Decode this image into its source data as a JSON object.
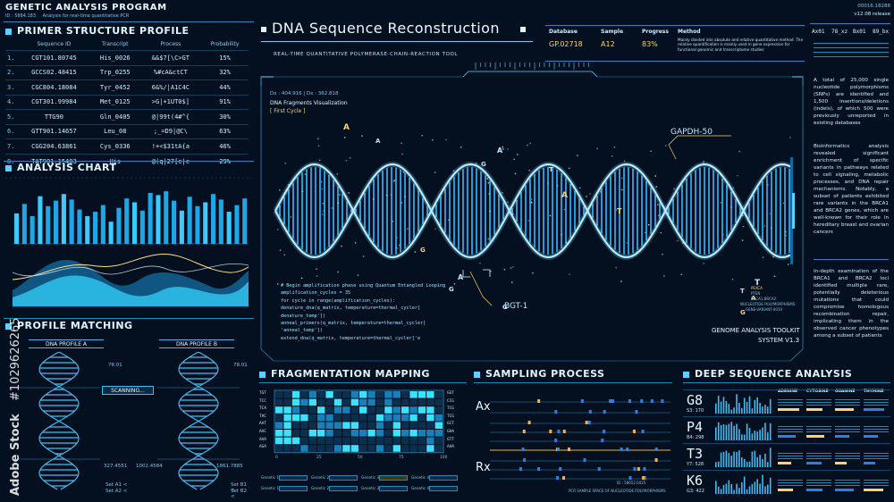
{
  "app": {
    "title": "GENETIC ANALYSIS PROGRAM",
    "subtitle": "ID : 5884.183",
    "subtitle_note": "Analysis for real-time quantitative PCR"
  },
  "primer": {
    "header": "PRIMER STRUCTURE PROFILE",
    "columns": [
      "Sequence ID",
      "Transcript",
      "Process",
      "Probability"
    ],
    "rows": [
      {
        "n": "1.",
        "id": "CGT101.80745",
        "tr": "His_0026",
        "proc": "&&$7[\\C>GT",
        "prob": "15%"
      },
      {
        "n": "2.",
        "id": "GCCS02.48415",
        "tr": "Trp_0255",
        "proc": "%#cA&ctCT",
        "prob": "32%"
      },
      {
        "n": "3.",
        "id": "CGC804.18084",
        "tr": "Tyr_0452",
        "proc": "6&%/|A1C4C",
        "prob": "44%"
      },
      {
        "n": "4.",
        "id": "CGT301.99984",
        "tr": "Met_0125",
        "proc": ">G|+1UT0$]",
        "prob": "91%"
      },
      {
        "n": "5.",
        "id": "TTG90",
        "tr": "Gln_0405",
        "proc": "@|99t(4#^{",
        "prob": "30%"
      },
      {
        "n": "6.",
        "id": "GTT901.14657",
        "tr": "Leu_08",
        "proc": ";_=D9|@C\\",
        "prob": "63%"
      },
      {
        "n": "7.",
        "id": "CGG204.63861",
        "tr": "Cys_0336",
        "proc": "!+<$31tA{a",
        "prob": "46%"
      },
      {
        "n": "8.",
        "id": "TAT901.15483",
        "tr": "His",
        "proc": "@(q|27[e|c",
        "prob": "29%"
      }
    ]
  },
  "analysis_chart": {
    "header": "ANALYSIS CHART",
    "bars": [
      0.55,
      0.72,
      0.5,
      0.86,
      0.68,
      0.78,
      0.9,
      0.8,
      0.62,
      0.5,
      0.58,
      0.7,
      0.4,
      0.65,
      0.82,
      0.75,
      0.6,
      0.92,
      0.88,
      0.95,
      0.78,
      0.6,
      0.85,
      0.68,
      0.75,
      0.9,
      0.8,
      0.58,
      0.7,
      0.82
    ]
  },
  "profile_matching": {
    "header": "PROFILE MATCHING",
    "profile_a": "DNA PROFILE A",
    "profile_b": "DNA PROFILE B",
    "status": "SCANNING...",
    "val_a1": "78.01",
    "val_a2": "327.4551",
    "val_a3": "1002.4584",
    "val_b1": "78.01",
    "val_b2": "1861.7885",
    "foot_a": "Set A1  <",
    "foot_a2": "Set A2  <",
    "foot_b": "Set B1  <",
    "foot_b2": "Set B2  <"
  },
  "main": {
    "title": "DNA Sequence Reconstruction",
    "subtitle": "REAL-TIME QUANTITATIVE POLYMERASE-CHAIN-REACTION TOOL",
    "coord": "Dx : 404.916  |  Dx : 362.818",
    "viz_title": "DNA Fragments Visualization",
    "viz_sub": "[ First Cycle ]",
    "label_gapdh": "GAPDH-50",
    "label_bgt": "BGT-1",
    "toolkit": "GENOME ANALYSIS TOOLKIT",
    "system": "SYSTEM V1.3",
    "code": [
      "# Begin amplification phase using Quantum Entangled Looping",
      "amplification_cycles = 35",
      "for cycle in range(amplification_cycles):",
      "    denature_dna(q_matrix, temperature=thermal_cycler[",
      "denature_temp'])",
      "    anneal_primers(q_matrix, temperature=thermal_cycler[",
      "'anneal_temp'])",
      "    extend_dna(q_matrix, temperature=thermal_cycler['e"
    ],
    "side_note_1": "PEXCA",
    "side_note_2": "PTEN",
    "side_note_3": "BRCA1,BRCA2",
    "side_note_4": "NUCLEOTIDE POLYMORPHISMS",
    "side_note_5": "GENE-VARIANT-0019"
  },
  "top_info": {
    "database_label": "Database",
    "database_val": "GP.02718",
    "sample_label": "Sample",
    "sample_val": "A12",
    "progress_label": "Progress",
    "progress_val": "83%",
    "method_label": "Method",
    "method_text": "Mainly divided into absolute and relative quantitative method. The relative quantification is mainly used in gene expression for functional genomic and transcriptome studies"
  },
  "right_col": {
    "code_top": "00016.18288",
    "release": "v12.08 release",
    "hex": [
      "Ax01",
      "78_xz",
      "Bx01",
      "89_bx"
    ],
    "para1": "A total of 25,000 single nucleotide polymorphisms (SNPs) are identified and 1,500 insertions/deletions (indels), of which 500 were previously unreported in existing databases",
    "para2": "Bioinformatics analysis revealed significant enrichment of specific variants in pathways related to cell signaling, metabolic processes, and DNA repair mechanisms. Notably, a subset of patients exhibited rare variants in the BRCA1 and BRCA2 genes, which are well-known for their role in hereditary breast and ovarian cancers",
    "para3": "In-depth examination of the BRCA1 and BRCA2 loci identified multiple rare, potentially deleterious mutations that could compromise homologous recombination repair, implicating them in the observed cancer phenotypes among a subset of patients"
  },
  "fragmentation": {
    "header": "FRAGMENTATION MAPPING",
    "row_labels": [
      "TGT",
      "TCC",
      "TCA",
      "TAC",
      "AAT",
      "AAC",
      "AAA",
      "AGA"
    ],
    "right_labels": [
      "GGT",
      "CCG",
      "TCG",
      "TCG",
      "GCT",
      "GAA",
      "GTT",
      "AAA"
    ],
    "axis": [
      "0",
      "25",
      "50",
      "75",
      "100"
    ],
    "foot": [
      "Genetic 1",
      "Genetic 2",
      "Genetic 3",
      "Genetic 4"
    ]
  },
  "sampling": {
    "header": "SAMPLING PROCESS",
    "ax": "Ax",
    "rx": "Rx",
    "foot": "PCR SAMPLE SPACE OF NUCLEOTIDE POLYMORPHISMS",
    "foot_id": "ID : 58652.0425"
  },
  "deep": {
    "header": "DEEP SEQUENCE ANALYSIS",
    "cols": [
      "ADENINE",
      "CYTOSINE",
      "GUANINE",
      "THYMINE"
    ],
    "rows": [
      {
        "code": "G8",
        "sub": "S3: 170"
      },
      {
        "code": "P4",
        "sub": "B4: 298"
      },
      {
        "code": "T3",
        "sub": "Y7: 528"
      },
      {
        "code": "K6",
        "sub": "G3: 422"
      }
    ]
  },
  "watermark": {
    "brand": "Adobe Stock",
    "id": "#1029626265"
  },
  "colors": {
    "accent": "#5fd0ff",
    "dna": "#39b8ff",
    "highlight": "#ffd36a",
    "bg": "#04101f"
  }
}
